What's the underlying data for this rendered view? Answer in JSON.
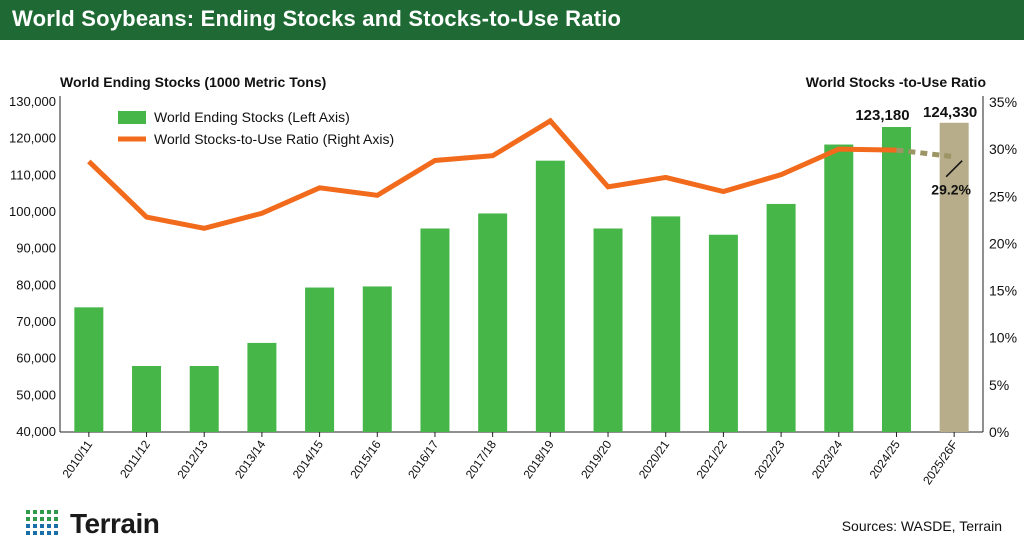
{
  "title": "World Soybeans: Ending Stocks and Stocks-to-Use Ratio",
  "left_axis_title": "World Ending Stocks (1000 Metric Tons)",
  "right_axis_title": "World Stocks -to-Use Ratio",
  "sources": "Sources: WASDE, Terrain",
  "logo_text": "Terrain",
  "colors": {
    "title_bar": "#1f6a34",
    "bars": "#47b649",
    "forecast_bar": "#b7ad8a",
    "line": "#f26a1b",
    "forecast_line": "#9c9566"
  },
  "chart_data": {
    "type": "bar+line",
    "categories": [
      "2010/11",
      "2011/12",
      "2012/13",
      "2013/14",
      "2014/15",
      "2015/16",
      "2016/17",
      "2017/18",
      "2018/19",
      "2019/20",
      "2020/21",
      "2021/22",
      "2022/23",
      "2023/24",
      "2024/25",
      "2025/26F"
    ],
    "series": [
      {
        "name": "World Ending Stocks (Left Axis)",
        "axis": "left",
        "type": "bar",
        "values": [
          74000,
          58000,
          58000,
          64300,
          79400,
          79700,
          95500,
          99600,
          114000,
          95500,
          98800,
          93800,
          102200,
          118400,
          123180,
          124330
        ]
      },
      {
        "name": "World Stocks-to-Use Ratio (Right Axis)",
        "axis": "right",
        "type": "line",
        "values": [
          28.7,
          22.8,
          21.6,
          23.2,
          25.9,
          25.1,
          28.8,
          29.3,
          33.0,
          26.0,
          27.0,
          25.5,
          27.3,
          30.0,
          29.9,
          29.2
        ]
      }
    ],
    "forecast_category": "2025/26F",
    "annotations": [
      {
        "category": "2024/25",
        "label": "123,180"
      },
      {
        "category": "2025/26F",
        "label": "124,330"
      },
      {
        "category": "2025/26F",
        "label": "29.2%"
      }
    ],
    "y_left": {
      "min": 40000,
      "max": 130000,
      "step": 10000
    },
    "y_right": {
      "min": 0,
      "max": 35,
      "step": 5
    },
    "y_left_ticks": [
      "40,000",
      "50,000",
      "60,000",
      "70,000",
      "80,000",
      "90,000",
      "100,000",
      "110,000",
      "120,000",
      "130,000"
    ],
    "y_right_ticks": [
      "0%",
      "5%",
      "10%",
      "15%",
      "20%",
      "25%",
      "30%",
      "35%"
    ],
    "legend_position": "top-left"
  }
}
